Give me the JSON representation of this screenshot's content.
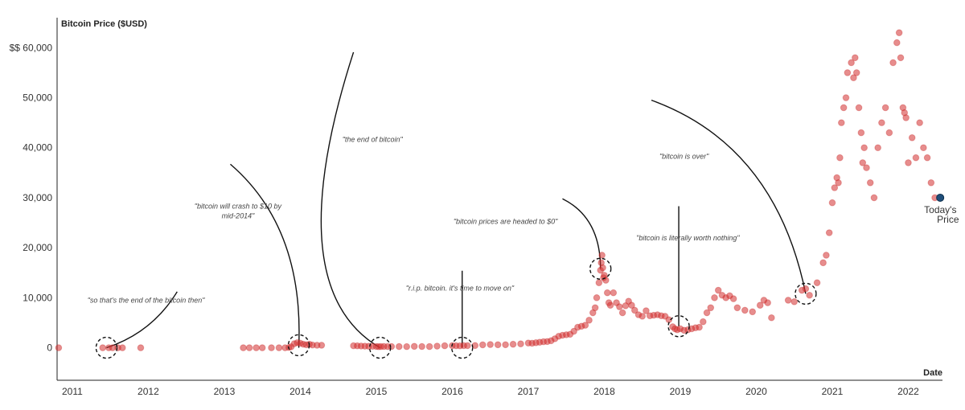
{
  "chart_data": {
    "type": "scatter",
    "ylabel": "Bitcoin Price ($USD)",
    "xlabel": "Date",
    "xlim": [
      2010.8,
      2022.45
    ],
    "ylim": [
      -6500,
      66000
    ],
    "y_ticks": [
      {
        "value": 0,
        "label": "0"
      },
      {
        "value": 10000,
        "label": "10,000"
      },
      {
        "value": 20000,
        "label": "20,000"
      },
      {
        "value": 30000,
        "label": "30,000"
      },
      {
        "value": 40000,
        "label": "40,000"
      },
      {
        "value": 50000,
        "label": "50,000"
      },
      {
        "value": 60000,
        "label": "$$ 60,000"
      }
    ],
    "x_ticks": [
      {
        "value": 2011,
        "label": "2011"
      },
      {
        "value": 2012,
        "label": "2012"
      },
      {
        "value": 2013,
        "label": "2013"
      },
      {
        "value": 2014,
        "label": "2014"
      },
      {
        "value": 2015,
        "label": "2015"
      },
      {
        "value": 2016,
        "label": "2016"
      },
      {
        "value": 2017,
        "label": "2017"
      },
      {
        "value": 2018,
        "label": "2018"
      },
      {
        "value": 2019,
        "label": "2019"
      },
      {
        "value": 2020,
        "label": "2020"
      },
      {
        "value": 2021,
        "label": "2021"
      },
      {
        "value": 2022,
        "label": "2022"
      }
    ],
    "dot_color": "#d32f2f",
    "today_color": "#1f4e79",
    "today": {
      "x": 2022.42,
      "y": 30000,
      "label": [
        "Today's",
        "Price"
      ]
    },
    "points": [
      [
        2010.82,
        0
      ],
      [
        2011.4,
        0
      ],
      [
        2011.48,
        0
      ],
      [
        2011.53,
        0
      ],
      [
        2011.6,
        0
      ],
      [
        2011.66,
        0
      ],
      [
        2011.9,
        0
      ],
      [
        2013.25,
        0
      ],
      [
        2013.33,
        0
      ],
      [
        2013.42,
        0
      ],
      [
        2013.5,
        0
      ],
      [
        2013.62,
        0
      ],
      [
        2013.72,
        0
      ],
      [
        2013.8,
        0
      ],
      [
        2013.85,
        50
      ],
      [
        2013.88,
        200
      ],
      [
        2013.92,
        800
      ],
      [
        2013.96,
        1000
      ],
      [
        2014.0,
        900
      ],
      [
        2014.04,
        700
      ],
      [
        2014.08,
        600
      ],
      [
        2014.12,
        700
      ],
      [
        2014.16,
        550
      ],
      [
        2014.22,
        500
      ],
      [
        2014.28,
        500
      ],
      [
        2014.7,
        400
      ],
      [
        2014.75,
        380
      ],
      [
        2014.8,
        350
      ],
      [
        2014.85,
        320
      ],
      [
        2014.9,
        300
      ],
      [
        2014.95,
        290
      ],
      [
        2015.0,
        250
      ],
      [
        2015.03,
        220
      ],
      [
        2015.06,
        240
      ],
      [
        2015.1,
        260
      ],
      [
        2015.15,
        240
      ],
      [
        2015.2,
        250
      ],
      [
        2015.3,
        240
      ],
      [
        2015.4,
        230
      ],
      [
        2015.5,
        280
      ],
      [
        2015.6,
        250
      ],
      [
        2015.7,
        240
      ],
      [
        2015.8,
        330
      ],
      [
        2015.9,
        400
      ],
      [
        2016.0,
        430
      ],
      [
        2016.05,
        400
      ],
      [
        2016.1,
        380
      ],
      [
        2016.15,
        420
      ],
      [
        2016.2,
        430
      ],
      [
        2016.3,
        450
      ],
      [
        2016.4,
        580
      ],
      [
        2016.5,
        650
      ],
      [
        2016.6,
        600
      ],
      [
        2016.7,
        610
      ],
      [
        2016.8,
        700
      ],
      [
        2016.9,
        780
      ],
      [
        2017.0,
        950
      ],
      [
        2017.05,
        900
      ],
      [
        2017.1,
        1000
      ],
      [
        2017.15,
        1100
      ],
      [
        2017.2,
        1200
      ],
      [
        2017.25,
        1250
      ],
      [
        2017.3,
        1400
      ],
      [
        2017.35,
        1800
      ],
      [
        2017.4,
        2300
      ],
      [
        2017.45,
        2500
      ],
      [
        2017.5,
        2600
      ],
      [
        2017.55,
        2700
      ],
      [
        2017.6,
        3300
      ],
      [
        2017.65,
        4100
      ],
      [
        2017.7,
        4300
      ],
      [
        2017.75,
        4500
      ],
      [
        2017.8,
        5500
      ],
      [
        2017.85,
        7000
      ],
      [
        2017.88,
        8000
      ],
      [
        2017.9,
        10000
      ],
      [
        2017.93,
        13000
      ],
      [
        2017.95,
        15500
      ],
      [
        2017.96,
        17000
      ],
      [
        2017.97,
        18500
      ],
      [
        2017.98,
        16000
      ],
      [
        2017.99,
        14000
      ],
      [
        2018.0,
        14500
      ],
      [
        2018.02,
        13500
      ],
      [
        2018.04,
        11000
      ],
      [
        2018.06,
        9000
      ],
      [
        2018.08,
        8500
      ],
      [
        2018.12,
        11000
      ],
      [
        2018.16,
        9000
      ],
      [
        2018.2,
        8200
      ],
      [
        2018.24,
        7000
      ],
      [
        2018.28,
        8400
      ],
      [
        2018.32,
        9300
      ],
      [
        2018.36,
        8500
      ],
      [
        2018.4,
        7500
      ],
      [
        2018.45,
        6600
      ],
      [
        2018.5,
        6300
      ],
      [
        2018.55,
        7400
      ],
      [
        2018.6,
        6400
      ],
      [
        2018.65,
        6500
      ],
      [
        2018.7,
        6600
      ],
      [
        2018.75,
        6400
      ],
      [
        2018.8,
        6300
      ],
      [
        2018.85,
        5600
      ],
      [
        2018.9,
        4200
      ],
      [
        2018.93,
        3800
      ],
      [
        2018.96,
        3600
      ],
      [
        2019.0,
        3800
      ],
      [
        2019.05,
        3500
      ],
      [
        2019.1,
        3600
      ],
      [
        2019.15,
        3800
      ],
      [
        2019.2,
        4000
      ],
      [
        2019.25,
        4100
      ],
      [
        2019.3,
        5200
      ],
      [
        2019.35,
        7000
      ],
      [
        2019.4,
        8000
      ],
      [
        2019.45,
        10000
      ],
      [
        2019.5,
        11500
      ],
      [
        2019.55,
        10500
      ],
      [
        2019.6,
        10000
      ],
      [
        2019.65,
        10400
      ],
      [
        2019.7,
        9800
      ],
      [
        2019.75,
        8000
      ],
      [
        2019.85,
        7500
      ],
      [
        2019.95,
        7200
      ],
      [
        2020.05,
        8500
      ],
      [
        2020.1,
        9500
      ],
      [
        2020.15,
        9000
      ],
      [
        2020.2,
        6000
      ],
      [
        2020.42,
        9500
      ],
      [
        2020.5,
        9200
      ],
      [
        2020.6,
        11500
      ],
      [
        2020.65,
        11800
      ],
      [
        2020.7,
        10500
      ],
      [
        2020.8,
        13000
      ],
      [
        2020.88,
        17000
      ],
      [
        2020.92,
        18500
      ],
      [
        2020.96,
        23000
      ],
      [
        2021.0,
        29000
      ],
      [
        2021.03,
        32000
      ],
      [
        2021.06,
        34000
      ],
      [
        2021.08,
        33000
      ],
      [
        2021.1,
        38000
      ],
      [
        2021.12,
        45000
      ],
      [
        2021.15,
        48000
      ],
      [
        2021.18,
        50000
      ],
      [
        2021.2,
        55000
      ],
      [
        2021.25,
        57000
      ],
      [
        2021.28,
        54000
      ],
      [
        2021.3,
        58000
      ],
      [
        2021.32,
        55000
      ],
      [
        2021.35,
        48000
      ],
      [
        2021.38,
        43000
      ],
      [
        2021.4,
        37000
      ],
      [
        2021.42,
        40000
      ],
      [
        2021.45,
        36000
      ],
      [
        2021.5,
        33000
      ],
      [
        2021.55,
        30000
      ],
      [
        2021.6,
        40000
      ],
      [
        2021.65,
        45000
      ],
      [
        2021.7,
        48000
      ],
      [
        2021.75,
        43000
      ],
      [
        2021.8,
        57000
      ],
      [
        2021.85,
        61000
      ],
      [
        2021.88,
        63000
      ],
      [
        2021.9,
        58000
      ],
      [
        2021.93,
        48000
      ],
      [
        2021.95,
        47000
      ],
      [
        2021.97,
        46000
      ],
      [
        2022.0,
        37000
      ],
      [
        2022.05,
        42000
      ],
      [
        2022.1,
        38000
      ],
      [
        2022.15,
        45000
      ],
      [
        2022.2,
        40000
      ],
      [
        2022.25,
        38000
      ],
      [
        2022.3,
        33000
      ],
      [
        2022.35,
        30000
      ]
    ],
    "annotations": [
      {
        "lines": [
          "\"so that's the end of the bitcoin then\""
        ],
        "tx": 2011.97,
        "ty": 9000,
        "target": [
          2011.45,
          0
        ],
        "line_start": [
          2012.38,
          11200
        ],
        "ctrl": [
          2012.05,
          3000
        ]
      },
      {
        "lines": [
          "\"bitcoin will crash to $10 by",
          "mid-2014\""
        ],
        "tx": 2013.18,
        "ty": 27800,
        "target": [
          2013.98,
          0
        ],
        "line_start": [
          2013.08,
          36700
        ],
        "ctrl": [
          2014.05,
          24000
        ]
      },
      {
        "lines": [
          "\"the end of bitcoin\""
        ],
        "tx": 2014.95,
        "ty": 41200,
        "target": [
          2015.05,
          0
        ],
        "line_start": [
          2014.7,
          59100
        ],
        "ctrl": [
          2013.7,
          12000
        ]
      },
      {
        "lines": [
          "\"r.i.p. bitcoin. it's time to move on\""
        ],
        "tx": 2016.1,
        "ty": 11400,
        "target": [
          2016.13,
          0
        ],
        "line_start": [
          2016.13,
          15400
        ],
        "ctrl": [
          2016.13,
          7700
        ]
      },
      {
        "lines": [
          "\"bitcoin prices are headed to $0\""
        ],
        "tx": 2016.7,
        "ty": 24800,
        "target": [
          2017.95,
          15800
        ],
        "line_start": [
          2017.45,
          29800
        ],
        "ctrl": [
          2017.95,
          26000
        ]
      },
      {
        "lines": [
          "\"bitcoin is over\""
        ],
        "tx": 2019.05,
        "ty": 37800,
        "target": [
          2020.65,
          10800
        ],
        "line_start": [
          2018.62,
          49500
        ],
        "ctrl": [
          2020.25,
          40500
        ]
      },
      {
        "lines": [
          "\"bitcoin is literally worth nothing\""
        ],
        "tx": 2019.1,
        "ty": 21500,
        "target": [
          2018.98,
          4300
        ],
        "line_start": [
          2018.98,
          28300
        ],
        "ctrl": [
          2018.98,
          16300
        ]
      }
    ],
    "highlights": [
      {
        "x": 2011.45,
        "y": 0
      },
      {
        "x": 2013.98,
        "y": 500
      },
      {
        "x": 2015.05,
        "y": 0
      },
      {
        "x": 2016.13,
        "y": 0
      },
      {
        "x": 2017.95,
        "y": 15800
      },
      {
        "x": 2018.98,
        "y": 4300
      },
      {
        "x": 2020.65,
        "y": 10800
      }
    ]
  }
}
